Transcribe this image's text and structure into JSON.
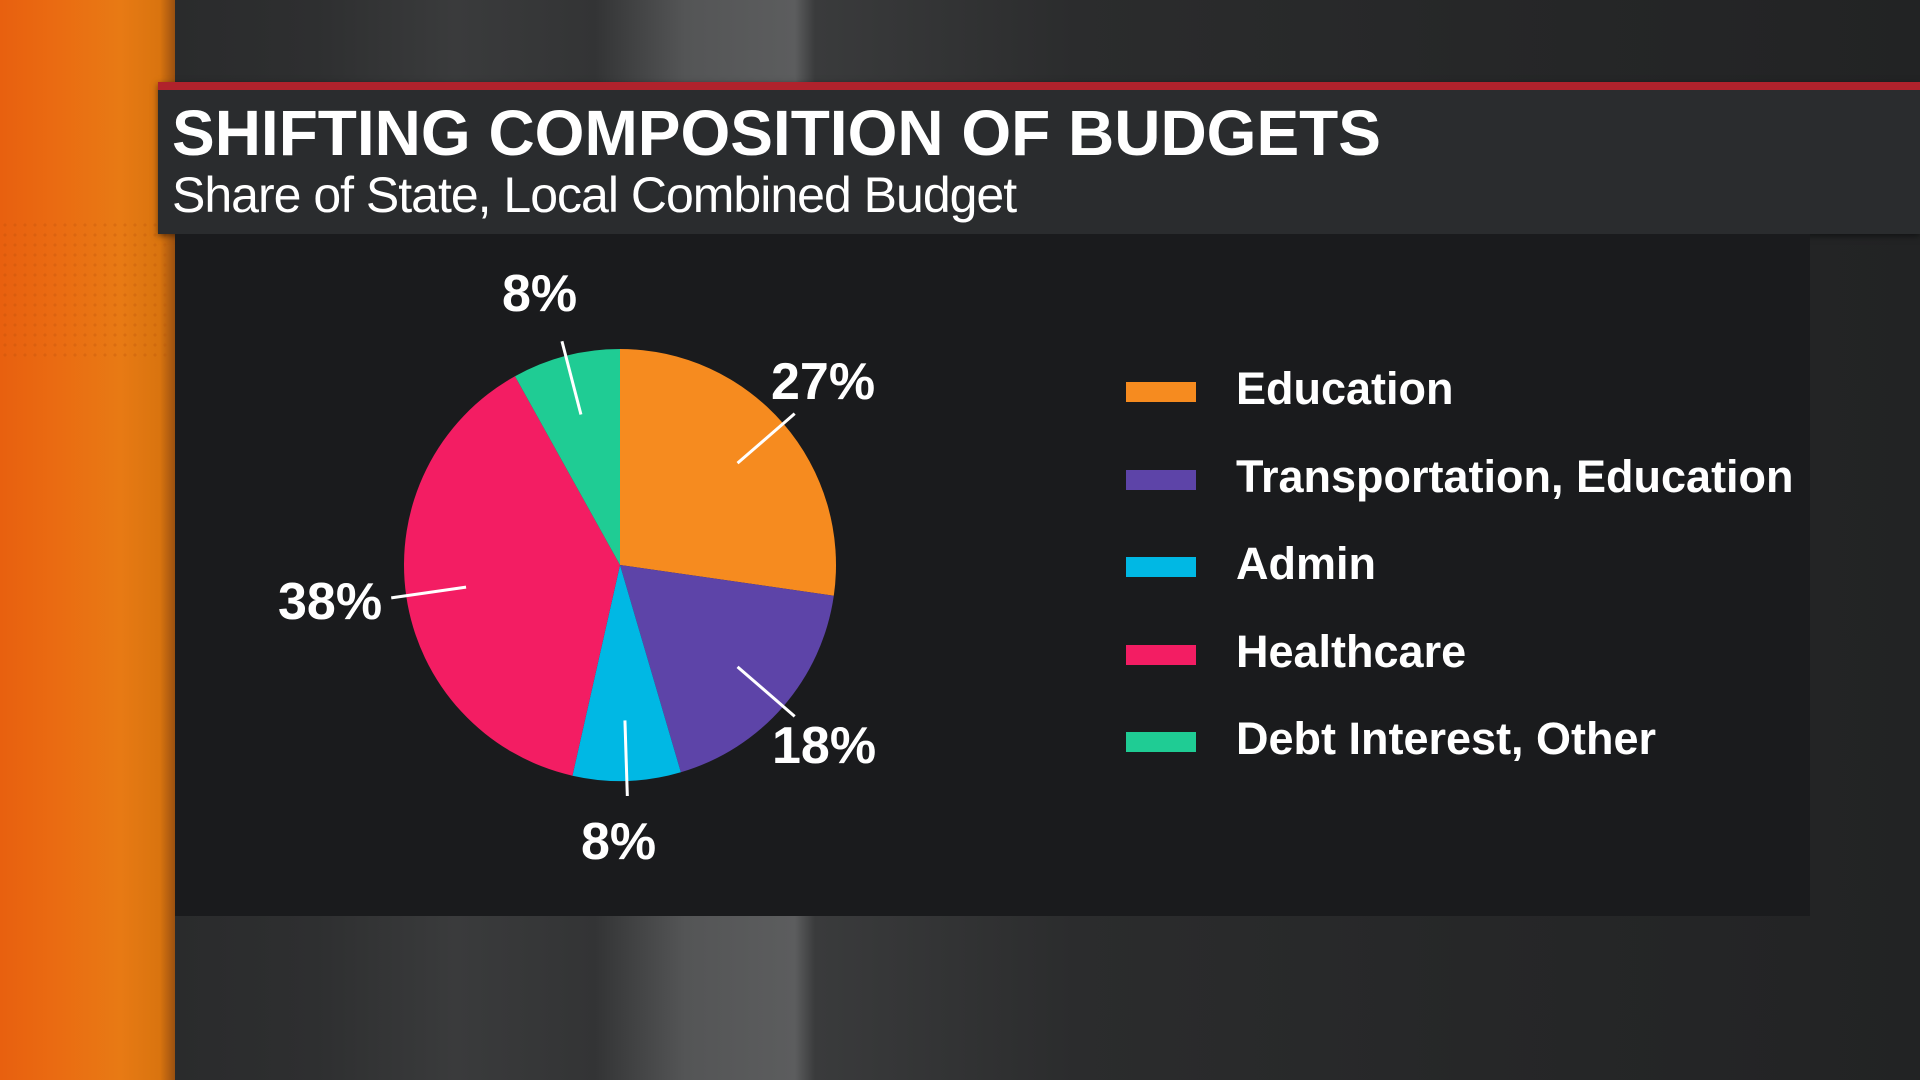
{
  "header": {
    "title": "SHIFTING COMPOSITION OF BUDGETS",
    "subtitle": "Share of State, Local Combined Budget",
    "accent_line_color": "#b0222c"
  },
  "labels": {
    "education": "27%",
    "transportation": "18%",
    "admin": "8%",
    "healthcare": "38%",
    "debt": "8%"
  },
  "legend": [
    {
      "label": "Education",
      "color": "#f68b1f"
    },
    {
      "label": "Transportation, Education",
      "color": "#5d44a8"
    },
    {
      "label": "Admin",
      "color": "#00b8e4"
    },
    {
      "label": "Healthcare",
      "color": "#f31d63"
    },
    {
      "label": "Debt Interest, Other",
      "color": "#1fcc94"
    }
  ],
  "chart_data": {
    "type": "pie",
    "title": "SHIFTING COMPOSITION OF BUDGETS",
    "subtitle": "Share of State, Local Combined Budget",
    "categories": [
      "Education",
      "Transportation, Education",
      "Admin",
      "Healthcare",
      "Debt Interest, Other"
    ],
    "values": [
      27,
      18,
      8,
      38,
      8
    ],
    "unit": "%",
    "colors": [
      "#f68b1f",
      "#5d44a8",
      "#00b8e4",
      "#f31d63",
      "#1fcc94"
    ],
    "legend_position": "right",
    "start_angle": "12 o'clock, clockwise"
  }
}
